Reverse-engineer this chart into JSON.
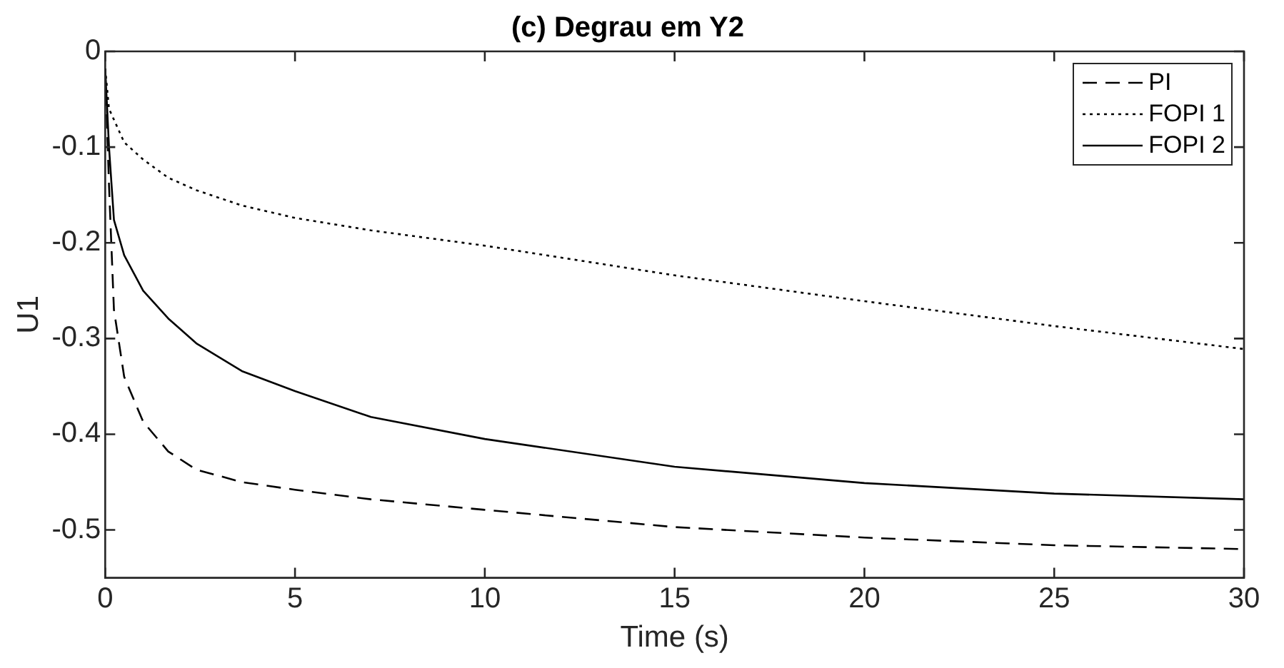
{
  "chart_data": {
    "type": "line",
    "title": "(c) Degrau em Y2",
    "xlabel": "Time (s)",
    "ylabel": "U1",
    "xlim": [
      0,
      30
    ],
    "xticks": [
      0,
      5,
      10,
      15,
      20,
      25,
      30
    ],
    "ylim": [
      -0.55,
      0
    ],
    "yticks": [
      -0.5,
      -0.4,
      -0.3,
      -0.2,
      -0.1,
      0
    ],
    "grid": false,
    "legend": "top right",
    "marker": "none",
    "series": [
      {
        "name": "PI",
        "color": "#000000",
        "line_style": "dashed",
        "x": [
          0,
          0.1,
          0.23,
          0.5,
          1,
          1.66,
          2.4,
          3.6,
          5,
          7,
          10,
          15,
          20,
          25,
          30
        ],
        "values": [
          -0.018,
          -0.14,
          -0.27,
          -0.34,
          -0.387,
          -0.418,
          -0.437,
          -0.45,
          -0.458,
          -0.468,
          -0.479,
          -0.497,
          -0.508,
          -0.516,
          -0.52
        ]
      },
      {
        "name": "FOPI 1",
        "color": "#000000",
        "line_style": "dotted",
        "x": [
          0,
          0.1,
          0.5,
          1,
          1.66,
          2.4,
          3.6,
          5,
          7,
          10,
          15,
          20,
          25,
          30
        ],
        "values": [
          -0.018,
          -0.06,
          -0.095,
          -0.113,
          -0.132,
          -0.145,
          -0.161,
          -0.174,
          -0.187,
          -0.203,
          -0.234,
          -0.261,
          -0.287,
          -0.311
        ]
      },
      {
        "name": "FOPI 2",
        "color": "#000000",
        "line_style": "solid",
        "x": [
          0,
          0.1,
          0.23,
          0.5,
          1,
          1.66,
          2.4,
          3.6,
          5,
          7,
          10,
          15,
          20,
          25,
          30
        ],
        "values": [
          -0.018,
          -0.1,
          -0.176,
          -0.213,
          -0.25,
          -0.279,
          -0.305,
          -0.334,
          -0.355,
          -0.382,
          -0.405,
          -0.434,
          -0.451,
          -0.462,
          -0.468
        ]
      }
    ]
  }
}
